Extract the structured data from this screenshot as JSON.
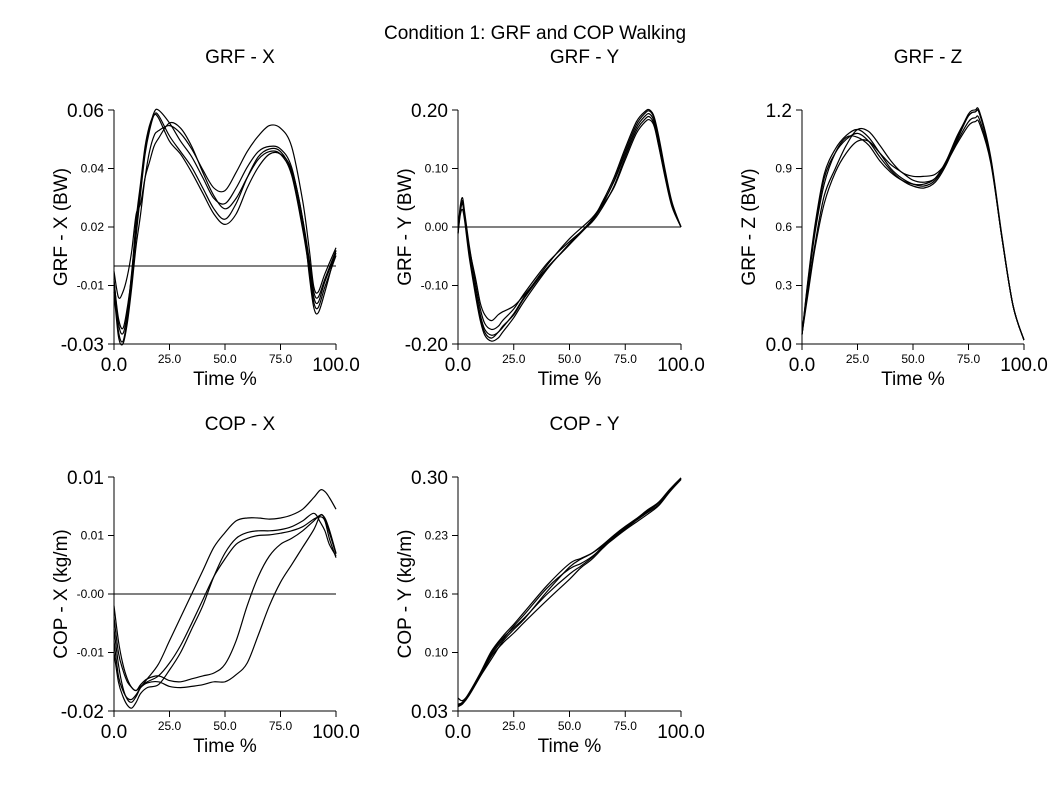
{
  "figure_title": "Condition 1: GRF and COP Walking",
  "chart_data": [
    {
      "id": "grf_x",
      "type": "line",
      "title": "GRF - X",
      "xlabel": "Time %",
      "ylabel": "GRF - X (BW)",
      "xlim": [
        0,
        100
      ],
      "ylim": [
        -0.03,
        0.06
      ],
      "x_tick_labels": [
        "0.0",
        "25.0",
        "50.0",
        "75.0",
        "100.0"
      ],
      "y_tick_labels": [
        "-0.03",
        "-0.01",
        "0.02",
        "0.04",
        "0.06"
      ],
      "zero_line": 0,
      "x": [
        0,
        2,
        4,
        6,
        8,
        10,
        12,
        14,
        16,
        18,
        20,
        25,
        30,
        35,
        40,
        45,
        50,
        55,
        60,
        65,
        70,
        75,
        80,
        85,
        88,
        90,
        92,
        95,
        100
      ],
      "series": [
        {
          "values": [
            -0.005,
            -0.022,
            -0.026,
            -0.018,
            -0.002,
            0.015,
            0.03,
            0.045,
            0.053,
            0.059,
            0.06,
            0.055,
            0.048,
            0.042,
            0.034,
            0.026,
            0.024,
            0.03,
            0.038,
            0.044,
            0.046,
            0.045,
            0.038,
            0.018,
            0.002,
            -0.01,
            -0.012,
            -0.005,
            0.006
          ]
        },
        {
          "values": [
            -0.008,
            -0.025,
            -0.029,
            -0.02,
            -0.005,
            0.012,
            0.028,
            0.043,
            0.052,
            0.058,
            0.058,
            0.05,
            0.044,
            0.038,
            0.03,
            0.022,
            0.018,
            0.024,
            0.034,
            0.042,
            0.045,
            0.044,
            0.036,
            0.016,
            0.0,
            -0.012,
            -0.014,
            -0.006,
            0.005
          ]
        },
        {
          "values": [
            -0.01,
            -0.027,
            -0.03,
            -0.022,
            -0.008,
            0.008,
            0.02,
            0.034,
            0.044,
            0.05,
            0.052,
            0.054,
            0.051,
            0.045,
            0.037,
            0.03,
            0.029,
            0.036,
            0.044,
            0.05,
            0.054,
            0.053,
            0.046,
            0.025,
            0.006,
            -0.008,
            -0.01,
            -0.003,
            0.007
          ]
        },
        {
          "values": [
            -0.002,
            -0.012,
            -0.01,
            -0.004,
            0.006,
            0.02,
            0.024,
            0.034,
            0.04,
            0.046,
            0.049,
            0.055,
            0.053,
            0.046,
            0.036,
            0.027,
            0.022,
            0.026,
            0.034,
            0.041,
            0.044,
            0.043,
            0.035,
            0.014,
            -0.002,
            -0.014,
            -0.016,
            -0.008,
            0.004
          ]
        },
        {
          "values": [
            -0.006,
            -0.02,
            -0.024,
            -0.016,
            -0.003,
            0.018,
            0.032,
            0.046,
            0.054,
            0.058,
            0.057,
            0.048,
            0.043,
            0.036,
            0.028,
            0.02,
            0.016,
            0.02,
            0.03,
            0.038,
            0.043,
            0.043,
            0.037,
            0.018,
            -0.004,
            -0.016,
            -0.018,
            -0.01,
            0.006
          ]
        }
      ]
    },
    {
      "id": "grf_y",
      "type": "line",
      "title": "GRF - Y",
      "xlabel": "Time %",
      "ylabel": "GRF - Y (BW)",
      "xlim": [
        0,
        100
      ],
      "ylim": [
        -0.2,
        0.2
      ],
      "x_tick_labels": [
        "0.0",
        "25.0",
        "50.0",
        "75.0",
        "100.0"
      ],
      "y_tick_labels": [
        "-0.20",
        "-0.10",
        "0.00",
        "0.10",
        "0.20"
      ],
      "zero_line": 0,
      "x": [
        0,
        1,
        2,
        3,
        5,
        8,
        10,
        12,
        15,
        18,
        20,
        25,
        30,
        40,
        50,
        60,
        65,
        70,
        75,
        80,
        84,
        86,
        88,
        90,
        93,
        96,
        100
      ],
      "series": [
        {
          "values": [
            -0.01,
            0.03,
            0.045,
            0.02,
            -0.04,
            -0.11,
            -0.15,
            -0.175,
            -0.185,
            -0.18,
            -0.17,
            -0.15,
            -0.12,
            -0.07,
            -0.03,
            0.01,
            0.04,
            0.08,
            0.13,
            0.175,
            0.195,
            0.198,
            0.185,
            0.15,
            0.09,
            0.04,
            0.0
          ]
        },
        {
          "values": [
            -0.005,
            0.035,
            0.05,
            0.025,
            -0.03,
            -0.1,
            -0.14,
            -0.165,
            -0.175,
            -0.17,
            -0.16,
            -0.14,
            -0.112,
            -0.062,
            -0.025,
            0.008,
            0.035,
            0.07,
            0.12,
            0.165,
            0.185,
            0.188,
            0.175,
            0.14,
            0.085,
            0.036,
            0.0
          ]
        },
        {
          "values": [
            -0.012,
            0.02,
            0.03,
            0.01,
            -0.05,
            -0.12,
            -0.16,
            -0.185,
            -0.195,
            -0.19,
            -0.18,
            -0.155,
            -0.125,
            -0.072,
            -0.028,
            0.012,
            0.045,
            0.085,
            0.135,
            0.18,
            0.198,
            0.2,
            0.188,
            0.155,
            0.095,
            0.042,
            0.0
          ]
        },
        {
          "values": [
            -0.008,
            0.025,
            0.04,
            0.015,
            -0.035,
            -0.09,
            -0.13,
            -0.15,
            -0.16,
            -0.15,
            -0.145,
            -0.135,
            -0.115,
            -0.07,
            -0.03,
            0.012,
            0.038,
            0.068,
            0.115,
            0.16,
            0.18,
            0.183,
            0.172,
            0.138,
            0.082,
            0.034,
            0.0
          ]
        },
        {
          "values": [
            -0.01,
            0.03,
            0.042,
            0.018,
            -0.045,
            -0.115,
            -0.155,
            -0.18,
            -0.19,
            -0.18,
            -0.172,
            -0.148,
            -0.118,
            -0.065,
            -0.02,
            0.015,
            0.042,
            0.078,
            0.125,
            0.17,
            0.19,
            0.193,
            0.18,
            0.145,
            0.088,
            0.038,
            0.0
          ]
        }
      ]
    },
    {
      "id": "grf_z",
      "type": "line",
      "title": "GRF - Z",
      "xlabel": "Time %",
      "ylabel": "GRF - Z (BW)",
      "xlim": [
        0,
        100
      ],
      "ylim": [
        0,
        1.2
      ],
      "x_tick_labels": [
        "0.0",
        "25.0",
        "50.0",
        "75.0",
        "100.0"
      ],
      "y_tick_labels": [
        "0.0",
        "0.3",
        "0.6",
        "0.9",
        "1.2"
      ],
      "x": [
        0,
        3,
        6,
        10,
        15,
        20,
        25,
        30,
        35,
        40,
        45,
        50,
        55,
        60,
        65,
        70,
        75,
        78,
        80,
        85,
        90,
        95,
        100
      ],
      "series": [
        {
          "values": [
            0.05,
            0.35,
            0.6,
            0.85,
            0.98,
            1.05,
            1.08,
            1.04,
            0.96,
            0.89,
            0.84,
            0.81,
            0.8,
            0.83,
            0.92,
            1.05,
            1.17,
            1.19,
            1.18,
            0.95,
            0.55,
            0.2,
            0.02
          ]
        },
        {
          "values": [
            0.05,
            0.36,
            0.62,
            0.87,
            1.0,
            1.07,
            1.1,
            1.06,
            0.98,
            0.9,
            0.85,
            0.82,
            0.81,
            0.84,
            0.93,
            1.06,
            1.18,
            1.2,
            1.19,
            0.96,
            0.56,
            0.2,
            0.02
          ]
        },
        {
          "values": [
            0.05,
            0.3,
            0.52,
            0.76,
            0.9,
            1.02,
            1.1,
            1.09,
            1.02,
            0.94,
            0.88,
            0.86,
            0.86,
            0.87,
            0.93,
            1.03,
            1.12,
            1.14,
            1.13,
            0.93,
            0.55,
            0.2,
            0.02
          ]
        },
        {
          "values": [
            0.05,
            0.33,
            0.58,
            0.82,
            0.98,
            1.06,
            1.06,
            1.02,
            0.94,
            0.88,
            0.84,
            0.82,
            0.82,
            0.85,
            0.94,
            1.07,
            1.17,
            1.19,
            1.18,
            0.95,
            0.55,
            0.2,
            0.02
          ]
        },
        {
          "values": [
            0.05,
            0.28,
            0.5,
            0.72,
            0.88,
            0.98,
            1.04,
            1.04,
            0.98,
            0.92,
            0.88,
            0.84,
            0.83,
            0.85,
            0.93,
            1.04,
            1.14,
            1.16,
            1.15,
            0.94,
            0.55,
            0.2,
            0.02
          ]
        }
      ]
    },
    {
      "id": "cop_x",
      "type": "line",
      "title": "COP - X",
      "xlabel": "Time %",
      "ylabel": "COP - X (kg/m)",
      "xlim": [
        0,
        100
      ],
      "ylim": [
        -0.02,
        0.02
      ],
      "x_tick_labels": [
        "0.0",
        "25.0",
        "50.0",
        "75.0",
        "100.0"
      ],
      "y_tick_labels": [
        "-0.02",
        "-0.01",
        "-0.00",
        "0.01",
        "0.01"
      ],
      "zero_line": 0,
      "x": [
        0,
        2,
        4,
        6,
        8,
        10,
        12,
        15,
        20,
        25,
        30,
        35,
        40,
        45,
        50,
        55,
        60,
        65,
        70,
        75,
        80,
        85,
        90,
        93,
        95,
        97,
        100
      ],
      "series": [
        {
          "values": [
            -0.006,
            -0.012,
            -0.016,
            -0.018,
            -0.0185,
            -0.0175,
            -0.016,
            -0.0145,
            -0.012,
            -0.008,
            -0.004,
            0.0,
            0.004,
            0.008,
            0.0105,
            0.0125,
            0.013,
            0.013,
            0.0128,
            0.013,
            0.0135,
            0.0145,
            0.0165,
            0.0178,
            0.0175,
            0.0165,
            0.0145
          ]
        },
        {
          "values": [
            -0.01,
            -0.015,
            -0.0175,
            -0.019,
            -0.0195,
            -0.0185,
            -0.017,
            -0.016,
            -0.0155,
            -0.013,
            -0.01,
            -0.006,
            -0.002,
            0.003,
            0.007,
            0.0095,
            0.0105,
            0.0108,
            0.0108,
            0.011,
            0.0115,
            0.0125,
            0.0138,
            0.0122,
            0.0108,
            0.0085,
            0.0065
          ]
        },
        {
          "values": [
            -0.004,
            -0.01,
            -0.013,
            -0.015,
            -0.016,
            -0.0165,
            -0.0155,
            -0.0145,
            -0.014,
            -0.0148,
            -0.015,
            -0.0145,
            -0.014,
            -0.0135,
            -0.012,
            -0.008,
            -0.002,
            0.003,
            0.0065,
            0.0085,
            0.0095,
            0.0108,
            0.0125,
            0.0135,
            0.013,
            0.011,
            0.007
          ]
        },
        {
          "values": [
            -0.008,
            -0.014,
            -0.0165,
            -0.0178,
            -0.018,
            -0.0172,
            -0.016,
            -0.0152,
            -0.015,
            -0.0158,
            -0.016,
            -0.0158,
            -0.0155,
            -0.015,
            -0.015,
            -0.0138,
            -0.0118,
            -0.007,
            -0.002,
            0.002,
            0.005,
            0.008,
            0.011,
            0.0135,
            0.0128,
            0.0105,
            0.0068
          ]
        },
        {
          "values": [
            -0.002,
            -0.008,
            -0.012,
            -0.0145,
            -0.016,
            -0.0165,
            -0.0158,
            -0.015,
            -0.014,
            -0.0118,
            -0.0088,
            -0.005,
            -0.001,
            0.003,
            0.006,
            0.0085,
            0.0095,
            0.01,
            0.0101,
            0.0104,
            0.0108,
            0.0115,
            0.0128,
            0.0132,
            0.0125,
            0.0095,
            0.0062
          ]
        }
      ]
    },
    {
      "id": "cop_y",
      "type": "line",
      "title": "COP - Y",
      "xlabel": "Time %",
      "ylabel": "COP - Y (kg/m)",
      "xlim": [
        0,
        100
      ],
      "ylim": [
        0.03,
        0.3
      ],
      "x_tick_labels": [
        "0.0",
        "25.0",
        "50.0",
        "75.0",
        "100.0"
      ],
      "y_tick_labels": [
        "0.03",
        "0.10",
        "0.16",
        "0.23",
        "0.30"
      ],
      "x": [
        0,
        2,
        5,
        10,
        15,
        20,
        25,
        30,
        40,
        50,
        55,
        60,
        65,
        70,
        75,
        80,
        85,
        90,
        95,
        100
      ],
      "series": [
        {
          "values": [
            0.035,
            0.038,
            0.048,
            0.07,
            0.093,
            0.108,
            0.12,
            0.133,
            0.158,
            0.182,
            0.195,
            0.205,
            0.218,
            0.23,
            0.24,
            0.25,
            0.259,
            0.268,
            0.284,
            0.298
          ]
        },
        {
          "values": [
            0.038,
            0.04,
            0.05,
            0.072,
            0.097,
            0.114,
            0.126,
            0.138,
            0.165,
            0.188,
            0.197,
            0.207,
            0.22,
            0.231,
            0.241,
            0.251,
            0.26,
            0.27,
            0.285,
            0.299
          ]
        },
        {
          "values": [
            0.045,
            0.042,
            0.05,
            0.07,
            0.09,
            0.11,
            0.124,
            0.137,
            0.168,
            0.196,
            0.205,
            0.212,
            0.222,
            0.233,
            0.243,
            0.252,
            0.262,
            0.271,
            0.286,
            0.299
          ]
        },
        {
          "values": [
            0.036,
            0.039,
            0.049,
            0.071,
            0.095,
            0.112,
            0.128,
            0.142,
            0.172,
            0.194,
            0.2,
            0.208,
            0.219,
            0.229,
            0.239,
            0.248,
            0.257,
            0.267,
            0.283,
            0.297
          ]
        },
        {
          "values": [
            0.037,
            0.04,
            0.051,
            0.074,
            0.099,
            0.116,
            0.13,
            0.145,
            0.175,
            0.2,
            0.206,
            0.212,
            0.221,
            0.232,
            0.242,
            0.251,
            0.261,
            0.27,
            0.285,
            0.298
          ]
        }
      ]
    }
  ]
}
